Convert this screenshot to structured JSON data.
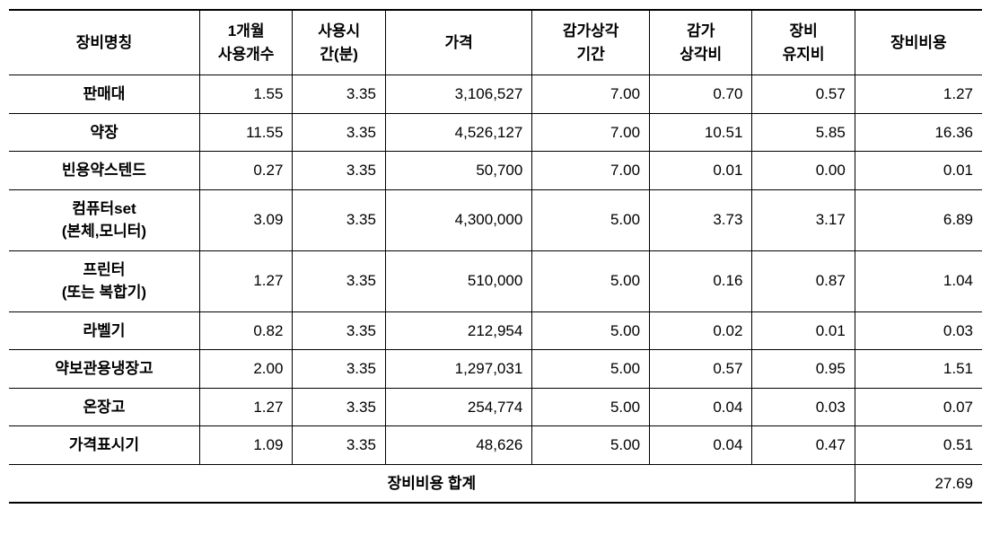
{
  "table": {
    "headers": {
      "name": "장비명칭",
      "count": "1개월\n사용개수",
      "time": "사용시\n간(분)",
      "price": "가격",
      "dep_period": "감가상각\n기간",
      "dep_cost": "감가\n상각비",
      "maintenance": "장비\n유지비",
      "total": "장비비용"
    },
    "rows": [
      {
        "name": "판매대",
        "count": "1.55",
        "time": "3.35",
        "price": "3,106,527",
        "dep_period": "7.00",
        "dep_cost": "0.70",
        "maintenance": "0.57",
        "total": "1.27"
      },
      {
        "name": "약장",
        "count": "11.55",
        "time": "3.35",
        "price": "4,526,127",
        "dep_period": "7.00",
        "dep_cost": "10.51",
        "maintenance": "5.85",
        "total": "16.36"
      },
      {
        "name": "빈용약스텐드",
        "count": "0.27",
        "time": "3.35",
        "price": "50,700",
        "dep_period": "7.00",
        "dep_cost": "0.01",
        "maintenance": "0.00",
        "total": "0.01"
      },
      {
        "name": "컴퓨터set\n(본체,모니터)",
        "count": "3.09",
        "time": "3.35",
        "price": "4,300,000",
        "dep_period": "5.00",
        "dep_cost": "3.73",
        "maintenance": "3.17",
        "total": "6.89"
      },
      {
        "name": "프린터\n(또는 복합기)",
        "count": "1.27",
        "time": "3.35",
        "price": "510,000",
        "dep_period": "5.00",
        "dep_cost": "0.16",
        "maintenance": "0.87",
        "total": "1.04"
      },
      {
        "name": "라벨기",
        "count": "0.82",
        "time": "3.35",
        "price": "212,954",
        "dep_period": "5.00",
        "dep_cost": "0.02",
        "maintenance": "0.01",
        "total": "0.03"
      },
      {
        "name": "약보관용냉장고",
        "count": "2.00",
        "time": "3.35",
        "price": "1,297,031",
        "dep_period": "5.00",
        "dep_cost": "0.57",
        "maintenance": "0.95",
        "total": "1.51"
      },
      {
        "name": "온장고",
        "count": "1.27",
        "time": "3.35",
        "price": "254,774",
        "dep_period": "5.00",
        "dep_cost": "0.04",
        "maintenance": "0.03",
        "total": "0.07"
      },
      {
        "name": "가격표시기",
        "count": "1.09",
        "time": "3.35",
        "price": "48,626",
        "dep_period": "5.00",
        "dep_cost": "0.04",
        "maintenance": "0.47",
        "total": "0.51"
      }
    ],
    "footer": {
      "label": "장비비용 합계",
      "value": "27.69"
    },
    "styling": {
      "border_color": "#000000",
      "background_color": "#ffffff",
      "header_fontsize": 17,
      "cell_fontsize": 17,
      "header_fontweight": "bold",
      "name_col_fontweight": "bold",
      "top_border_width": 2,
      "bottom_border_width": 2,
      "inner_border_width": 1,
      "numeric_align": "right",
      "name_align": "center",
      "col_widths": {
        "name": 195,
        "count": 95,
        "time": 95,
        "price": 150,
        "dep_period": 120,
        "dep_cost": 105,
        "maintenance": 105,
        "total": 130
      }
    }
  }
}
